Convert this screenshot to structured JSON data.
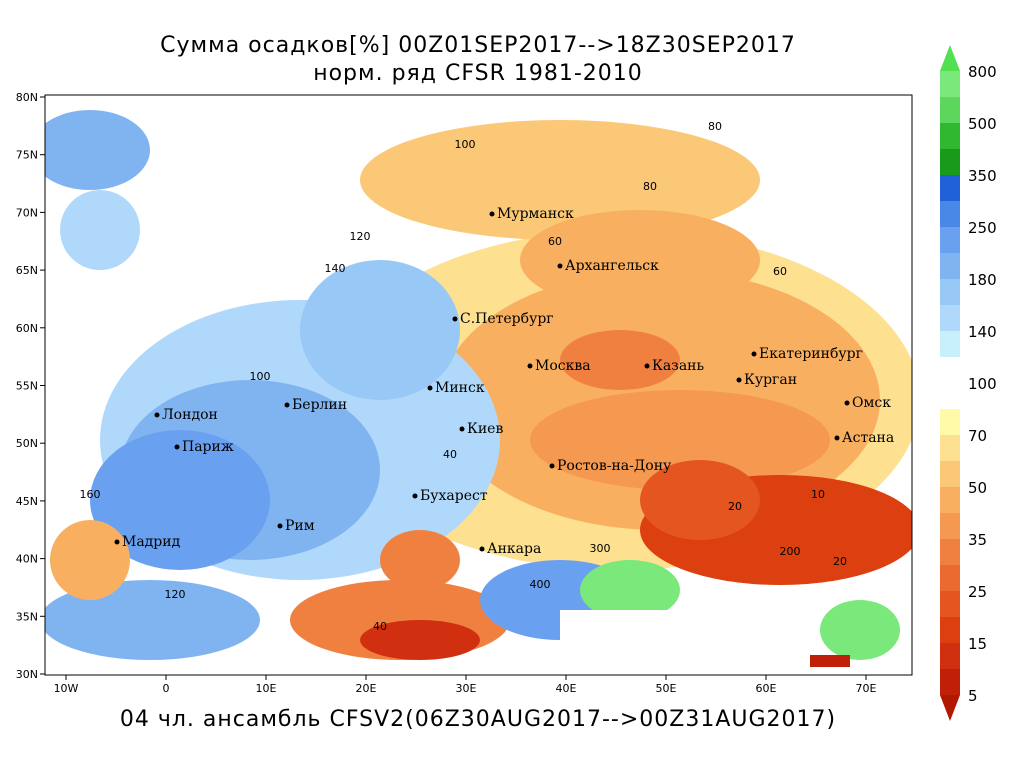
{
  "title": "Сумма осадков[%] 00Z01SEP2017-->18Z30SEP2017",
  "subtitle": "норм. ряд CFSR 1981-2010",
  "footer": "04 чл. ансамбль CFSV2(06Z30AUG2017-->00Z31AUG2017)",
  "lon_ticks": [
    "10W",
    "0",
    "10E",
    "20E",
    "30E",
    "40E",
    "50E",
    "60E",
    "70E"
  ],
  "lat_ticks": [
    "80N",
    "75N",
    "70N",
    "65N",
    "60N",
    "55N",
    "50N",
    "45N",
    "40N",
    "35N",
    "30N"
  ],
  "colorbar": {
    "levels": [
      800,
      500,
      350,
      250,
      180,
      140,
      100,
      70,
      50,
      35,
      25,
      15,
      5
    ],
    "colors": [
      "#50e050",
      "#7ae87a",
      "#5cd65c",
      "#30b830",
      "#1a9a1a",
      "#2060d8",
      "#4a88e8",
      "#6aa0f0",
      "#80b4f0",
      "#98c8f5",
      "#b0d8fa",
      "#c8f0fa",
      "#ffffff",
      "#ffffff",
      "#fffaa8",
      "#fde090",
      "#fbc878",
      "#f8b060",
      "#f59850",
      "#f08040",
      "#ea6a30",
      "#e45520",
      "#dc4010",
      "#d03010",
      "#c02008",
      "#b01800"
    ]
  },
  "cities": [
    "Мурманск",
    "Архангельск",
    "С.Петербург",
    "Москва",
    "Казань",
    "Екатеринбург",
    "Курган",
    "Омск",
    "Минск",
    "Берлин",
    "Лондон",
    "Киев",
    "Астана",
    "Париж",
    "Ростов-на-Дону",
    "Бухарест",
    "Мадрид",
    "Анкара",
    "Рим"
  ],
  "map_labels": [
    "100",
    "80",
    "60",
    "120",
    "140",
    "160",
    "40",
    "20",
    "10",
    "200",
    "300",
    "400",
    "80",
    "60",
    "100",
    "120",
    "40",
    "20"
  ]
}
